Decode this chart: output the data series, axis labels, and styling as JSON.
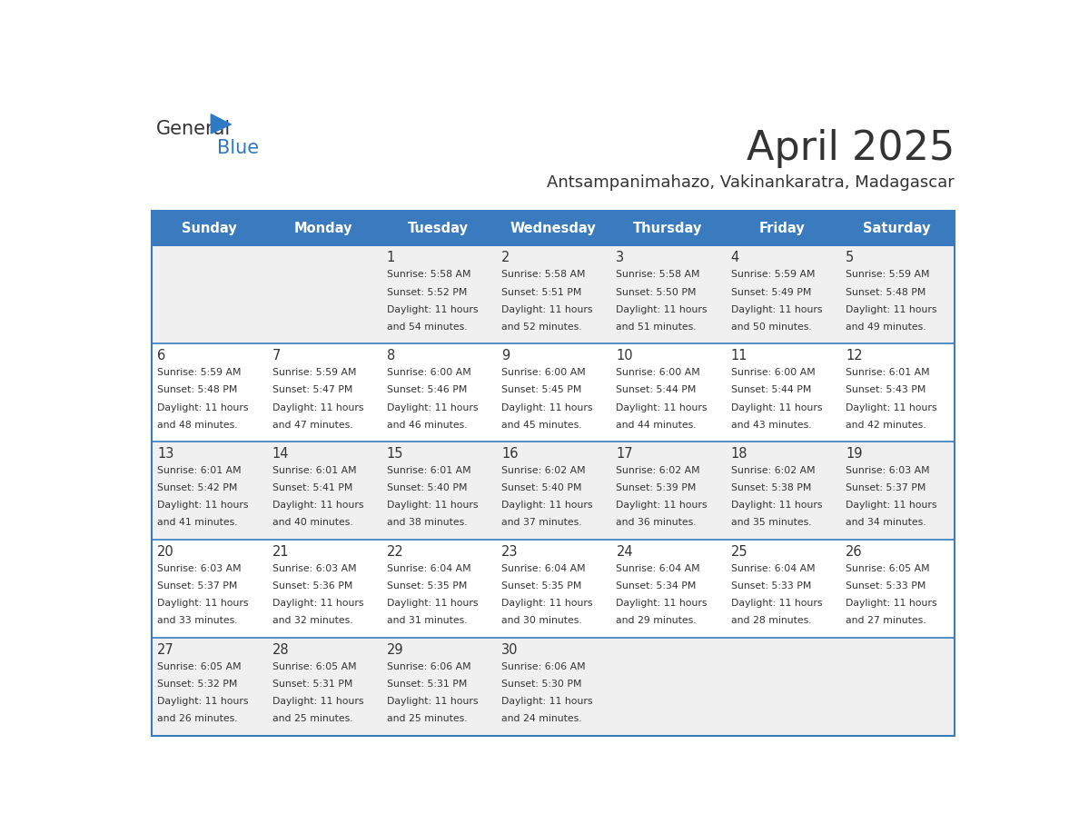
{
  "title": "April 2025",
  "subtitle": "Antsampanimahazo, Vakinankaratra, Madagascar",
  "header_color": "#3a7abf",
  "header_text_color": "#ffffff",
  "day_names": [
    "Sunday",
    "Monday",
    "Tuesday",
    "Wednesday",
    "Thursday",
    "Friday",
    "Saturday"
  ],
  "bg_color": "#ffffff",
  "cell_bg_even": "#f0f0f0",
  "cell_bg_odd": "#ffffff",
  "row_separator_color": "#3a7abf",
  "title_color": "#333333",
  "subtitle_color": "#333333",
  "text_color": "#333333",
  "logo_general_color": "#333333",
  "logo_blue_color": "#2e7bc4",
  "days": [
    {
      "day": 1,
      "col": 2,
      "row": 0,
      "sunrise": "5:58 AM",
      "sunset": "5:52 PM",
      "daylight_hours": 11,
      "daylight_minutes": 54
    },
    {
      "day": 2,
      "col": 3,
      "row": 0,
      "sunrise": "5:58 AM",
      "sunset": "5:51 PM",
      "daylight_hours": 11,
      "daylight_minutes": 52
    },
    {
      "day": 3,
      "col": 4,
      "row": 0,
      "sunrise": "5:58 AM",
      "sunset": "5:50 PM",
      "daylight_hours": 11,
      "daylight_minutes": 51
    },
    {
      "day": 4,
      "col": 5,
      "row": 0,
      "sunrise": "5:59 AM",
      "sunset": "5:49 PM",
      "daylight_hours": 11,
      "daylight_minutes": 50
    },
    {
      "day": 5,
      "col": 6,
      "row": 0,
      "sunrise": "5:59 AM",
      "sunset": "5:48 PM",
      "daylight_hours": 11,
      "daylight_minutes": 49
    },
    {
      "day": 6,
      "col": 0,
      "row": 1,
      "sunrise": "5:59 AM",
      "sunset": "5:48 PM",
      "daylight_hours": 11,
      "daylight_minutes": 48
    },
    {
      "day": 7,
      "col": 1,
      "row": 1,
      "sunrise": "5:59 AM",
      "sunset": "5:47 PM",
      "daylight_hours": 11,
      "daylight_minutes": 47
    },
    {
      "day": 8,
      "col": 2,
      "row": 1,
      "sunrise": "6:00 AM",
      "sunset": "5:46 PM",
      "daylight_hours": 11,
      "daylight_minutes": 46
    },
    {
      "day": 9,
      "col": 3,
      "row": 1,
      "sunrise": "6:00 AM",
      "sunset": "5:45 PM",
      "daylight_hours": 11,
      "daylight_minutes": 45
    },
    {
      "day": 10,
      "col": 4,
      "row": 1,
      "sunrise": "6:00 AM",
      "sunset": "5:44 PM",
      "daylight_hours": 11,
      "daylight_minutes": 44
    },
    {
      "day": 11,
      "col": 5,
      "row": 1,
      "sunrise": "6:00 AM",
      "sunset": "5:44 PM",
      "daylight_hours": 11,
      "daylight_minutes": 43
    },
    {
      "day": 12,
      "col": 6,
      "row": 1,
      "sunrise": "6:01 AM",
      "sunset": "5:43 PM",
      "daylight_hours": 11,
      "daylight_minutes": 42
    },
    {
      "day": 13,
      "col": 0,
      "row": 2,
      "sunrise": "6:01 AM",
      "sunset": "5:42 PM",
      "daylight_hours": 11,
      "daylight_minutes": 41
    },
    {
      "day": 14,
      "col": 1,
      "row": 2,
      "sunrise": "6:01 AM",
      "sunset": "5:41 PM",
      "daylight_hours": 11,
      "daylight_minutes": 40
    },
    {
      "day": 15,
      "col": 2,
      "row": 2,
      "sunrise": "6:01 AM",
      "sunset": "5:40 PM",
      "daylight_hours": 11,
      "daylight_minutes": 38
    },
    {
      "day": 16,
      "col": 3,
      "row": 2,
      "sunrise": "6:02 AM",
      "sunset": "5:40 PM",
      "daylight_hours": 11,
      "daylight_minutes": 37
    },
    {
      "day": 17,
      "col": 4,
      "row": 2,
      "sunrise": "6:02 AM",
      "sunset": "5:39 PM",
      "daylight_hours": 11,
      "daylight_minutes": 36
    },
    {
      "day": 18,
      "col": 5,
      "row": 2,
      "sunrise": "6:02 AM",
      "sunset": "5:38 PM",
      "daylight_hours": 11,
      "daylight_minutes": 35
    },
    {
      "day": 19,
      "col": 6,
      "row": 2,
      "sunrise": "6:03 AM",
      "sunset": "5:37 PM",
      "daylight_hours": 11,
      "daylight_minutes": 34
    },
    {
      "day": 20,
      "col": 0,
      "row": 3,
      "sunrise": "6:03 AM",
      "sunset": "5:37 PM",
      "daylight_hours": 11,
      "daylight_minutes": 33
    },
    {
      "day": 21,
      "col": 1,
      "row": 3,
      "sunrise": "6:03 AM",
      "sunset": "5:36 PM",
      "daylight_hours": 11,
      "daylight_minutes": 32
    },
    {
      "day": 22,
      "col": 2,
      "row": 3,
      "sunrise": "6:04 AM",
      "sunset": "5:35 PM",
      "daylight_hours": 11,
      "daylight_minutes": 31
    },
    {
      "day": 23,
      "col": 3,
      "row": 3,
      "sunrise": "6:04 AM",
      "sunset": "5:35 PM",
      "daylight_hours": 11,
      "daylight_minutes": 30
    },
    {
      "day": 24,
      "col": 4,
      "row": 3,
      "sunrise": "6:04 AM",
      "sunset": "5:34 PM",
      "daylight_hours": 11,
      "daylight_minutes": 29
    },
    {
      "day": 25,
      "col": 5,
      "row": 3,
      "sunrise": "6:04 AM",
      "sunset": "5:33 PM",
      "daylight_hours": 11,
      "daylight_minutes": 28
    },
    {
      "day": 26,
      "col": 6,
      "row": 3,
      "sunrise": "6:05 AM",
      "sunset": "5:33 PM",
      "daylight_hours": 11,
      "daylight_minutes": 27
    },
    {
      "day": 27,
      "col": 0,
      "row": 4,
      "sunrise": "6:05 AM",
      "sunset": "5:32 PM",
      "daylight_hours": 11,
      "daylight_minutes": 26
    },
    {
      "day": 28,
      "col": 1,
      "row": 4,
      "sunrise": "6:05 AM",
      "sunset": "5:31 PM",
      "daylight_hours": 11,
      "daylight_minutes": 25
    },
    {
      "day": 29,
      "col": 2,
      "row": 4,
      "sunrise": "6:06 AM",
      "sunset": "5:31 PM",
      "daylight_hours": 11,
      "daylight_minutes": 25
    },
    {
      "day": 30,
      "col": 3,
      "row": 4,
      "sunrise": "6:06 AM",
      "sunset": "5:30 PM",
      "daylight_hours": 11,
      "daylight_minutes": 24
    }
  ]
}
